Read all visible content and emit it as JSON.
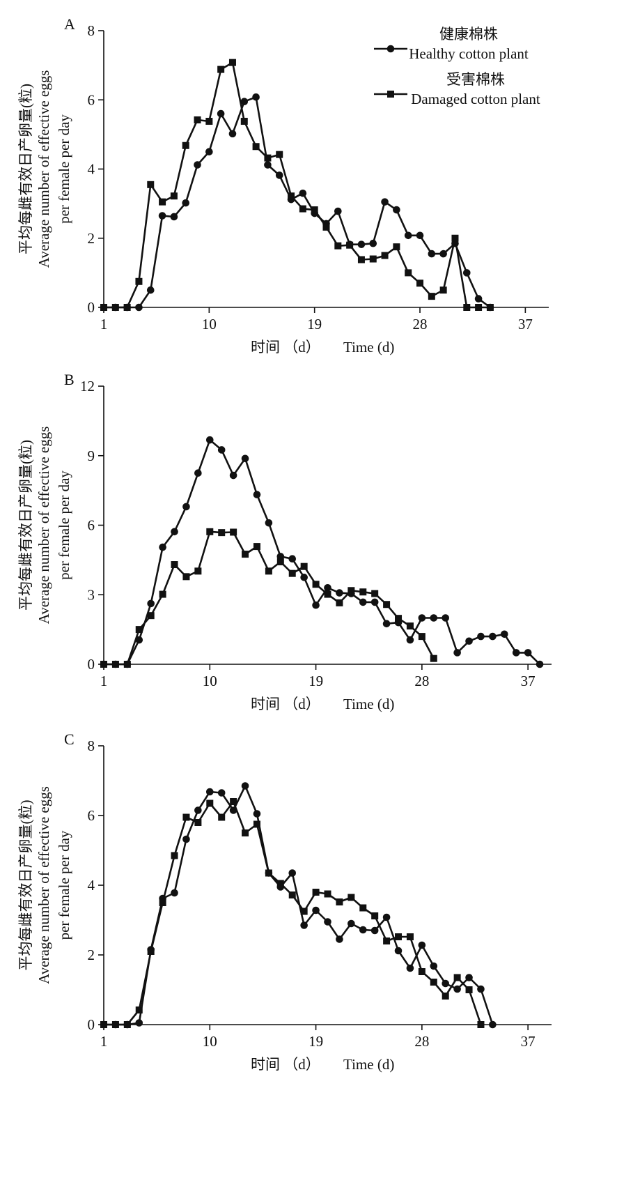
{
  "legend": {
    "healthy_cn": "健康棉株",
    "healthy_en": "Healthy cotton plant",
    "damaged_cn": "受害棉株",
    "damaged_en": "Damaged cotton plant"
  },
  "chart_data": [
    {
      "type": "line",
      "panel_label": "A",
      "xlabel_cn": "时间 （d）",
      "xlabel_en": "Time (d)",
      "ylabel_cn": "平均每雌有效日产卵量(粒)",
      "ylabel_en1": "Average number of effective eggs",
      "ylabel_en2": "per female per day",
      "xlim": [
        1,
        39
      ],
      "ylim": [
        0,
        8
      ],
      "xticks": [
        1,
        10,
        19,
        28,
        37
      ],
      "yticks": [
        0,
        2,
        4,
        6,
        8
      ],
      "legend": "top-right",
      "grid": false,
      "series": [
        {
          "name": "Healthy cotton plant",
          "marker": "circle",
          "x": [
            1,
            2,
            3,
            4,
            5,
            6,
            7,
            8,
            9,
            10,
            11,
            12,
            13,
            14,
            15,
            16,
            17,
            18,
            19,
            20,
            21,
            22,
            23,
            24,
            25,
            26,
            27,
            28,
            29,
            30,
            31,
            32,
            33,
            34
          ],
          "y": [
            0,
            0,
            0,
            0,
            0.5,
            2.65,
            2.62,
            3.02,
            4.12,
            4.5,
            5.6,
            5.02,
            5.95,
            6.08,
            4.12,
            3.82,
            3.12,
            3.3,
            2.72,
            2.42,
            2.78,
            1.82,
            1.82,
            1.85,
            3.05,
            2.82,
            2.08,
            2.08,
            1.55,
            1.55,
            1.85,
            1.0,
            0.25,
            0
          ]
        },
        {
          "name": "Damaged cotton plant",
          "marker": "square",
          "x": [
            1,
            2,
            3,
            4,
            5,
            6,
            7,
            8,
            9,
            10,
            11,
            12,
            13,
            14,
            15,
            16,
            17,
            18,
            19,
            20,
            21,
            22,
            23,
            24,
            25,
            26,
            27,
            28,
            29,
            30,
            31,
            32,
            33,
            34
          ],
          "y": [
            0,
            0,
            0,
            0.75,
            3.55,
            3.05,
            3.22,
            4.68,
            5.42,
            5.38,
            6.88,
            7.08,
            5.38,
            4.65,
            4.32,
            4.42,
            3.22,
            2.85,
            2.82,
            2.32,
            1.78,
            1.8,
            1.38,
            1.4,
            1.5,
            1.75,
            1.0,
            0.7,
            0.32,
            0.5,
            2.0,
            0,
            0,
            0
          ]
        }
      ]
    },
    {
      "type": "line",
      "panel_label": "B",
      "xlabel_cn": "时间 （d）",
      "xlabel_en": "Time (d)",
      "ylabel_cn": "平均每雌有效日产卵量(粒)",
      "ylabel_en1": "Average number of effective eggs",
      "ylabel_en2": "per female per day",
      "xlim": [
        1,
        39
      ],
      "ylim": [
        0,
        12
      ],
      "xticks": [
        1,
        10,
        19,
        28,
        37
      ],
      "yticks": [
        0,
        3,
        6,
        9,
        12
      ],
      "grid": false,
      "series": [
        {
          "name": "Healthy cotton plant",
          "marker": "circle",
          "x": [
            1,
            2,
            3,
            4,
            5,
            6,
            7,
            8,
            9,
            10,
            11,
            12,
            13,
            14,
            15,
            16,
            17,
            18,
            19,
            20,
            21,
            22,
            23,
            24,
            25,
            26,
            27,
            28,
            29,
            30,
            31,
            32,
            33,
            34,
            35,
            36,
            37,
            38
          ],
          "y": [
            0,
            0,
            0,
            1.05,
            2.62,
            5.05,
            5.72,
            6.8,
            8.25,
            9.68,
            9.25,
            8.15,
            8.88,
            7.32,
            6.1,
            4.65,
            4.55,
            3.75,
            2.55,
            3.3,
            3.08,
            3.05,
            2.68,
            2.68,
            1.75,
            1.8,
            1.05,
            2.0,
            2.0,
            2.0,
            0.5,
            1.0,
            1.2,
            1.2,
            1.3,
            0.5,
            0.5,
            0
          ]
        },
        {
          "name": "Damaged cotton plant",
          "marker": "square",
          "x": [
            1,
            2,
            3,
            4,
            5,
            6,
            7,
            8,
            9,
            10,
            11,
            12,
            13,
            14,
            15,
            16,
            17,
            18,
            19,
            20,
            21,
            22,
            23,
            24,
            25,
            26,
            27,
            28,
            29
          ],
          "y": [
            0,
            0,
            0,
            1.5,
            2.1,
            3.02,
            4.3,
            3.78,
            4.02,
            5.72,
            5.68,
            5.7,
            4.75,
            5.08,
            4.02,
            4.42,
            3.92,
            4.22,
            3.45,
            3.02,
            2.65,
            3.18,
            3.12,
            3.05,
            2.58,
            1.98,
            1.65,
            1.2,
            0.25
          ]
        }
      ]
    },
    {
      "type": "line",
      "panel_label": "C",
      "xlabel_cn": "时间 （d）",
      "xlabel_en": "Time (d)",
      "ylabel_cn": "平均每雌有效日产卵量(粒)",
      "ylabel_en1": "Average number of effective eggs",
      "ylabel_en2": "per female per day",
      "xlim": [
        1,
        39
      ],
      "ylim": [
        0,
        8
      ],
      "xticks": [
        1,
        10,
        19,
        28,
        37
      ],
      "yticks": [
        0,
        2,
        4,
        6,
        8
      ],
      "grid": false,
      "series": [
        {
          "name": "Healthy cotton plant",
          "marker": "circle",
          "x": [
            1,
            2,
            3,
            4,
            5,
            6,
            7,
            8,
            9,
            10,
            11,
            12,
            13,
            14,
            15,
            16,
            17,
            18,
            19,
            20,
            21,
            22,
            23,
            24,
            25,
            26,
            27,
            28,
            29,
            30,
            31,
            32,
            33,
            34
          ],
          "y": [
            0,
            0,
            0,
            0.05,
            2.15,
            3.62,
            3.78,
            5.32,
            6.15,
            6.68,
            6.65,
            6.15,
            6.85,
            6.05,
            4.35,
            3.95,
            4.35,
            2.85,
            3.28,
            2.95,
            2.45,
            2.9,
            2.72,
            2.7,
            3.08,
            2.12,
            1.62,
            2.28,
            1.68,
            1.18,
            1.02,
            1.35,
            1.02,
            0
          ]
        },
        {
          "name": "Damaged cotton plant",
          "marker": "square",
          "x": [
            1,
            2,
            3,
            4,
            5,
            6,
            7,
            8,
            9,
            10,
            11,
            12,
            13,
            14,
            15,
            16,
            17,
            18,
            19,
            20,
            21,
            22,
            23,
            24,
            25,
            26,
            27,
            28,
            29,
            30,
            31,
            32,
            33
          ],
          "y": [
            0,
            0,
            0,
            0.42,
            2.1,
            3.5,
            4.85,
            5.95,
            5.8,
            6.35,
            5.95,
            6.4,
            5.5,
            5.75,
            4.35,
            4.05,
            3.72,
            3.25,
            3.8,
            3.75,
            3.52,
            3.65,
            3.35,
            3.12,
            2.4,
            2.52,
            2.52,
            1.52,
            1.22,
            0.82,
            1.35,
            1.0,
            0
          ]
        }
      ]
    }
  ]
}
